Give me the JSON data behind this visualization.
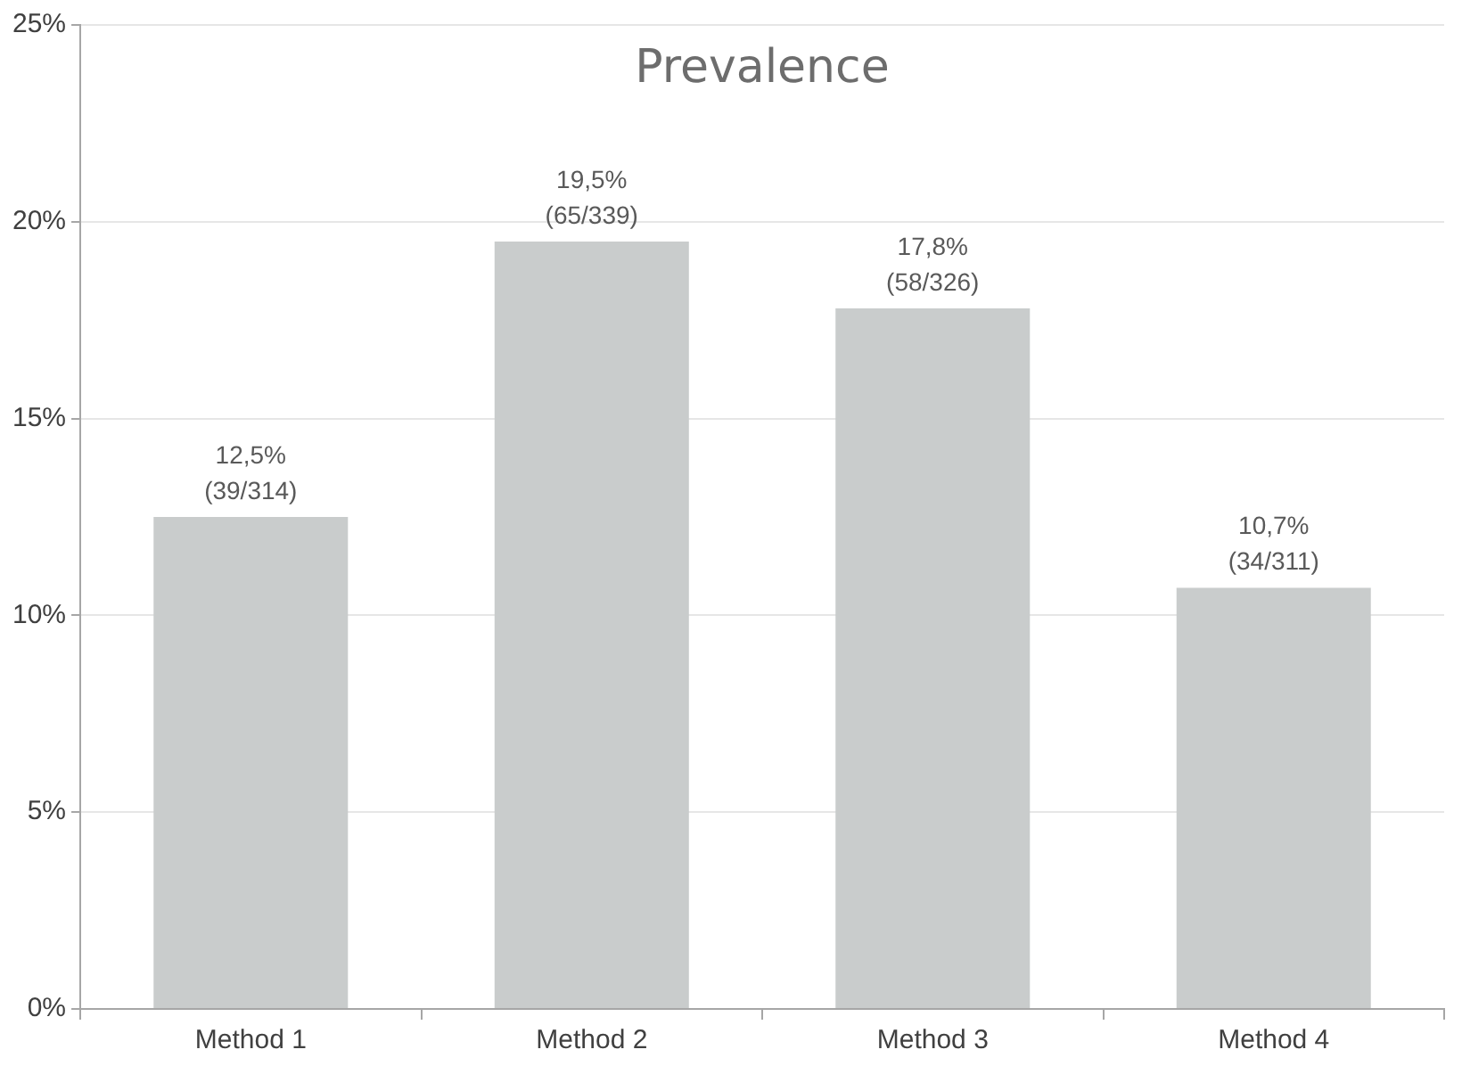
{
  "chart_data": {
    "type": "bar",
    "title": "Prevalence",
    "categories": [
      "Method 1",
      "Method 2",
      "Method 3",
      "Method 4"
    ],
    "values": [
      12.5,
      19.5,
      17.8,
      10.7
    ],
    "value_labels": [
      "12,5%\n(39/314)",
      "19,5%\n(65/339)",
      "17,8%\n(58/326)",
      "10,7%\n(34/311)"
    ],
    "color": "#c9cccc",
    "ylim": [
      0,
      25
    ],
    "yticks": [
      {
        "value": 0,
        "label": "0%"
      },
      {
        "value": 5,
        "label": "5%"
      },
      {
        "value": 10,
        "label": "10%"
      },
      {
        "value": 15,
        "label": "15%"
      },
      {
        "value": 20,
        "label": "20%"
      },
      {
        "value": 25,
        "label": "25%"
      }
    ],
    "grid": "y",
    "legend": false
  }
}
